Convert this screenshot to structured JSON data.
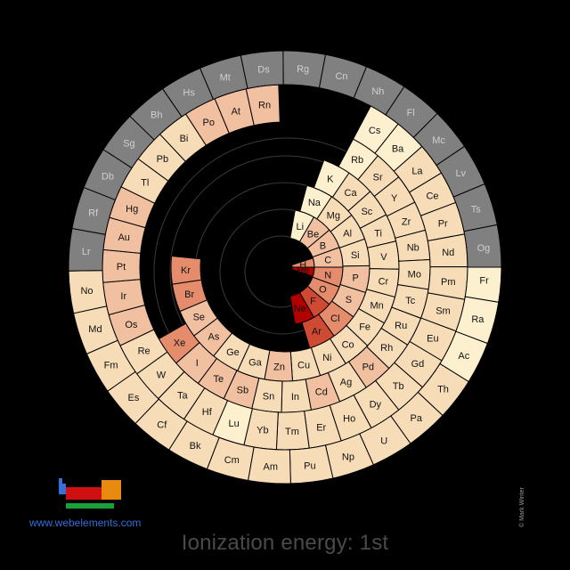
{
  "title": "Ionization energy: 1st",
  "site": "www.webelements.com",
  "copyright": "© Mark Winter",
  "colors": {
    "background": "#000000",
    "unknown": "#808080",
    "scale": [
      "#fdf0cf",
      "#f7dcb8",
      "#f0c0a0",
      "#e48c6c",
      "#cf4a33",
      "#b20000"
    ]
  },
  "elements": [
    {
      "symbol": "H",
      "value": 1312
    },
    {
      "symbol": "He",
      "value": 2372.3
    },
    {
      "symbol": "Li",
      "value": 520.2
    },
    {
      "symbol": "Be",
      "value": 899.5
    },
    {
      "symbol": "B",
      "value": 800.6
    },
    {
      "symbol": "C",
      "value": 1086.5
    },
    {
      "symbol": "N",
      "value": 1402.3
    },
    {
      "symbol": "O",
      "value": 1313.9
    },
    {
      "symbol": "F",
      "value": 1681
    },
    {
      "symbol": "Ne",
      "value": 2080.7
    },
    {
      "symbol": "Na",
      "value": 495.8
    },
    {
      "symbol": "Mg",
      "value": 737.7
    },
    {
      "symbol": "Al",
      "value": 577.5
    },
    {
      "symbol": "Si",
      "value": 786.5
    },
    {
      "symbol": "P",
      "value": 1011.8
    },
    {
      "symbol": "S",
      "value": 999.6
    },
    {
      "symbol": "Cl",
      "value": 1251.2
    },
    {
      "symbol": "Ar",
      "value": 1520.6
    },
    {
      "symbol": "K",
      "value": 418.8
    },
    {
      "symbol": "Ca",
      "value": 589.8
    },
    {
      "symbol": "Sc",
      "value": 633.1
    },
    {
      "symbol": "Ti",
      "value": 658.8
    },
    {
      "symbol": "V",
      "value": 650.9
    },
    {
      "symbol": "Cr",
      "value": 652.9
    },
    {
      "symbol": "Mn",
      "value": 717.3
    },
    {
      "symbol": "Fe",
      "value": 762.5
    },
    {
      "symbol": "Co",
      "value": 760.4
    },
    {
      "symbol": "Ni",
      "value": 737.1
    },
    {
      "symbol": "Cu",
      "value": 745.5
    },
    {
      "symbol": "Zn",
      "value": 906.4
    },
    {
      "symbol": "Ga",
      "value": 578.8
    },
    {
      "symbol": "Ge",
      "value": 762
    },
    {
      "symbol": "As",
      "value": 947
    },
    {
      "symbol": "Se",
      "value": 941
    },
    {
      "symbol": "Br",
      "value": 1139.9
    },
    {
      "symbol": "Kr",
      "value": 1350.8
    },
    {
      "symbol": "Rb",
      "value": 403
    },
    {
      "symbol": "Sr",
      "value": 549.5
    },
    {
      "symbol": "Y",
      "value": 600
    },
    {
      "symbol": "Zr",
      "value": 640.1
    },
    {
      "symbol": "Nb",
      "value": 652.1
    },
    {
      "symbol": "Mo",
      "value": 684.3
    },
    {
      "symbol": "Tc",
      "value": 702
    },
    {
      "symbol": "Ru",
      "value": 710.2
    },
    {
      "symbol": "Rh",
      "value": 719.7
    },
    {
      "symbol": "Pd",
      "value": 804.4
    },
    {
      "symbol": "Ag",
      "value": 731
    },
    {
      "symbol": "Cd",
      "value": 867.8
    },
    {
      "symbol": "In",
      "value": 558.3
    },
    {
      "symbol": "Sn",
      "value": 708.6
    },
    {
      "symbol": "Sb",
      "value": 834
    },
    {
      "symbol": "Te",
      "value": 869.3
    },
    {
      "symbol": "I",
      "value": 1008.4
    },
    {
      "symbol": "Xe",
      "value": 1170.4
    },
    {
      "symbol": "Cs",
      "value": 375.7
    },
    {
      "symbol": "Ba",
      "value": 502.9
    },
    {
      "symbol": "La",
      "value": 538.1
    },
    {
      "symbol": "Ce",
      "value": 534.4
    },
    {
      "symbol": "Pr",
      "value": 527
    },
    {
      "symbol": "Nd",
      "value": 533.1
    },
    {
      "symbol": "Pm",
      "value": 540
    },
    {
      "symbol": "Sm",
      "value": 544.5
    },
    {
      "symbol": "Eu",
      "value": 547.1
    },
    {
      "symbol": "Gd",
      "value": 593.4
    },
    {
      "symbol": "Tb",
      "value": 565.8
    },
    {
      "symbol": "Dy",
      "value": 573
    },
    {
      "symbol": "Ho",
      "value": 581
    },
    {
      "symbol": "Er",
      "value": 589.3
    },
    {
      "symbol": "Tm",
      "value": 596.7
    },
    {
      "symbol": "Yb",
      "value": 603.4
    },
    {
      "symbol": "Lu",
      "value": 523.5
    },
    {
      "symbol": "Hf",
      "value": 658.5
    },
    {
      "symbol": "Ta",
      "value": 761
    },
    {
      "symbol": "W",
      "value": 770
    },
    {
      "symbol": "Re",
      "value": 760
    },
    {
      "symbol": "Os",
      "value": 840
    },
    {
      "symbol": "Ir",
      "value": 880
    },
    {
      "symbol": "Pt",
      "value": 870
    },
    {
      "symbol": "Au",
      "value": 890.1
    },
    {
      "symbol": "Hg",
      "value": 1007.1
    },
    {
      "symbol": "Tl",
      "value": 589.4
    },
    {
      "symbol": "Pb",
      "value": 715.6
    },
    {
      "symbol": "Bi",
      "value": 703
    },
    {
      "symbol": "Po",
      "value": 812.1
    },
    {
      "symbol": "At",
      "value": 899
    },
    {
      "symbol": "Rn",
      "value": 1037
    },
    {
      "symbol": "Fr",
      "value": 380
    },
    {
      "symbol": "Ra",
      "value": 509.3
    },
    {
      "symbol": "Ac",
      "value": 499
    },
    {
      "symbol": "Th",
      "value": 587
    },
    {
      "symbol": "Pa",
      "value": 568
    },
    {
      "symbol": "U",
      "value": 597.6
    },
    {
      "symbol": "Np",
      "value": 604.5
    },
    {
      "symbol": "Pu",
      "value": 584.7
    },
    {
      "symbol": "Am",
      "value": 578
    },
    {
      "symbol": "Cm",
      "value": 581
    },
    {
      "symbol": "Bk",
      "value": 601
    },
    {
      "symbol": "Cf",
      "value": 608
    },
    {
      "symbol": "Es",
      "value": 619
    },
    {
      "symbol": "Fm",
      "value": 627
    },
    {
      "symbol": "Md",
      "value": 635
    },
    {
      "symbol": "No",
      "value": 642
    },
    {
      "symbol": "Lr",
      "value": null
    },
    {
      "symbol": "Rf",
      "value": null
    },
    {
      "symbol": "Db",
      "value": null
    },
    {
      "symbol": "Sg",
      "value": null
    },
    {
      "symbol": "Bh",
      "value": null
    },
    {
      "symbol": "Hs",
      "value": null
    },
    {
      "symbol": "Mt",
      "value": null
    },
    {
      "symbol": "Ds",
      "value": null
    },
    {
      "symbol": "Rg",
      "value": null
    },
    {
      "symbol": "Cn",
      "value": null
    },
    {
      "symbol": "Nh",
      "value": null
    },
    {
      "symbol": "Fl",
      "value": null
    },
    {
      "symbol": "Mc",
      "value": null
    },
    {
      "symbol": "Lv",
      "value": null
    },
    {
      "symbol": "Ts",
      "value": null
    },
    {
      "symbol": "Og",
      "value": null
    }
  ]
}
